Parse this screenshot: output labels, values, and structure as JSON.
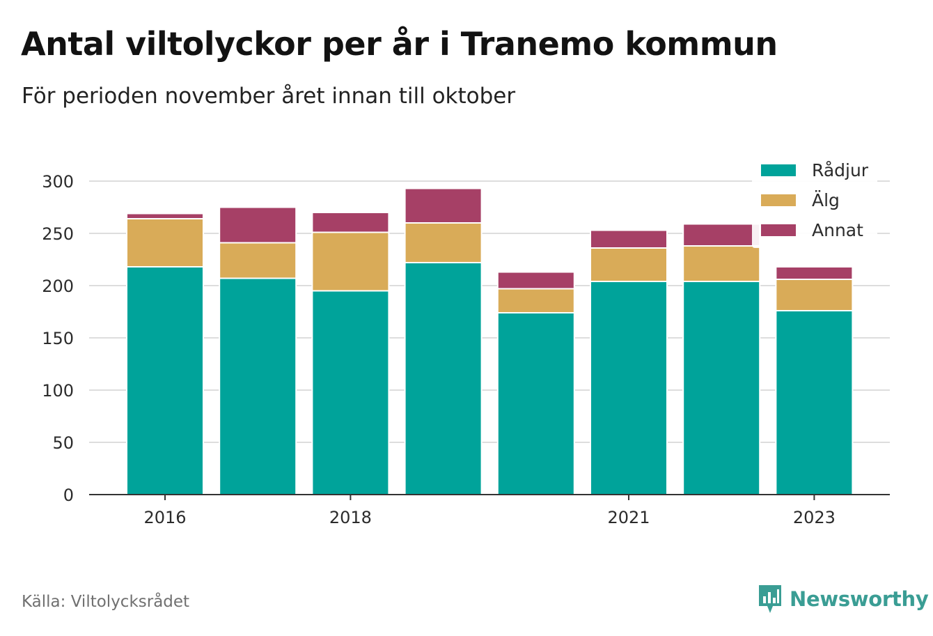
{
  "title": "Antal viltolyckor per år i Tranemo kommun",
  "subtitle": "För perioden november året innan till oktober",
  "source": "Källa: Viltolycksrådet",
  "brand": {
    "name": "Newsworthy",
    "icon": "newsworthy-logo-icon",
    "color": "#3a9d94"
  },
  "chart_data": {
    "type": "bar",
    "stacked": true,
    "categories": [
      "2016",
      "2017",
      "2018",
      "2019",
      "2020",
      "2021",
      "2022",
      "2023"
    ],
    "x_tick_labels": [
      "2016",
      "2018",
      "2021",
      "2023"
    ],
    "series": [
      {
        "name": "Rådjur",
        "color": "#00a39a",
        "values": [
          218,
          207,
          195,
          222,
          174,
          204,
          204,
          176
        ]
      },
      {
        "name": "Älg",
        "color": "#d9ab58",
        "values": [
          46,
          34,
          56,
          38,
          23,
          32,
          34,
          30
        ]
      },
      {
        "name": "Annat",
        "color": "#a64066",
        "values": [
          5,
          34,
          19,
          33,
          16,
          17,
          21,
          12
        ]
      }
    ],
    "ylim": [
      0,
      300
    ],
    "yticks": [
      0,
      50,
      100,
      150,
      200,
      250,
      300
    ],
    "xlabel": "",
    "ylabel": "",
    "grid": true,
    "legend_position": "top-right"
  }
}
